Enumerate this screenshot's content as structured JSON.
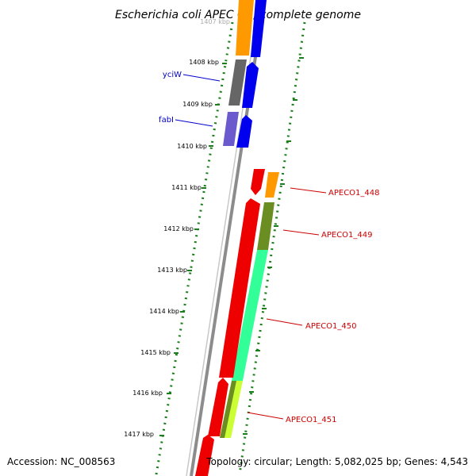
{
  "title": "Escherichia coli APEC O1, complete genome",
  "footer": {
    "accession": "Accession: NC_008563",
    "topology": "Topology: circular; Length: 5,082,025 bp; Genes: 4,543"
  },
  "kbp_labels": [
    "1407 kbp",
    "1408 kbp",
    "1409 kbp",
    "1410 kbp",
    "1411 kbp",
    "1412 kbp",
    "1413 kbp",
    "1414 kbp",
    "1415 kbp",
    "1416 kbp",
    "1417 kbp"
  ],
  "gene_labels": [
    {
      "text": "yciW",
      "color": "#0000cc"
    },
    {
      "text": "fabI",
      "color": "#0000cc"
    },
    {
      "text": "APECO1_448",
      "color": "#cc0000"
    },
    {
      "text": "APECO1_449",
      "color": "#cc0000"
    },
    {
      "text": "APECO1_450",
      "color": "#cc0000"
    },
    {
      "text": "APECO1_451",
      "color": "#cc0000"
    }
  ],
  "colors": {
    "backbone": "#8c8c8c",
    "tick_dots": "#1a7f1a",
    "orange": "#ff9900",
    "blue": "#0000ee",
    "gray": "#666666",
    "purple": "#6a5acd",
    "red": "#ee0000",
    "olive": "#6b8e23",
    "mint": "#33ff99",
    "yellow_green": "#ccff33"
  }
}
